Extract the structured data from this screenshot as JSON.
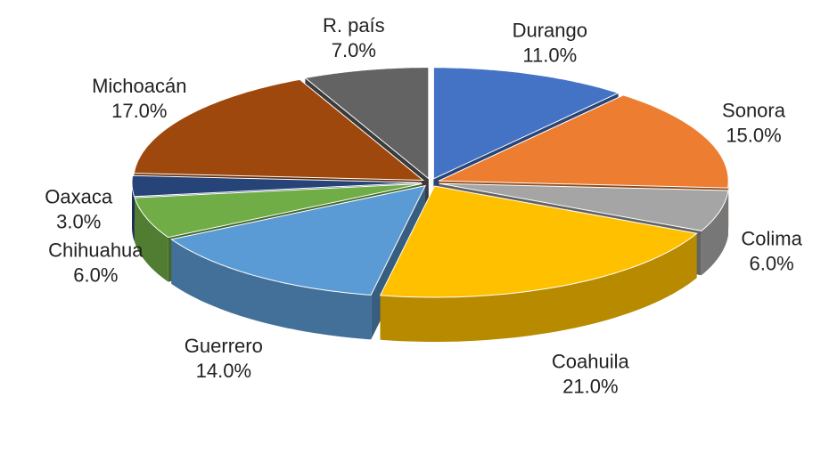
{
  "chart_data": {
    "type": "pie",
    "categories": [
      "Durango",
      "Sonora",
      "Colima",
      "Coahuila",
      "Guerrero",
      "Chihuahua",
      "Oaxaca",
      "Michoacán",
      "R. país"
    ],
    "values": [
      11,
      15,
      6,
      21,
      14,
      6,
      3,
      17,
      7
    ],
    "value_labels": [
      "11.0%",
      "15.0%",
      "6.0%",
      "21.0%",
      "14.0%",
      "6.0%",
      "3.0%",
      "17.0%",
      "7.0%"
    ],
    "colors": [
      "#4472c4",
      "#ed7d31",
      "#a5a5a5",
      "#ffc000",
      "#5b9bd5",
      "#70ad47",
      "#264478",
      "#9e480e",
      "#636363"
    ]
  }
}
